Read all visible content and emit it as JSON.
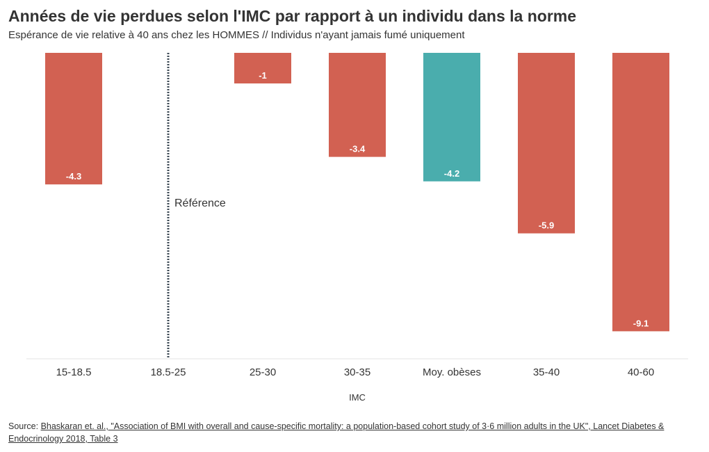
{
  "title": "Années de vie perdues selon l'IMC par rapport à un individu dans la norme",
  "subtitle": "Espérance de vie relative à 40 ans chez les HOMMES // Individus n'ayant jamais fumé uniquement",
  "source": {
    "prefix": "Source: ",
    "link_text": "Bhaskaran et. al., \"Association of BMI with overall and cause-specific mortality: a population-based cohort study of 3·6 million adults in the UK\", Lancet Diabetes & Endocrinology 2018, Table 3"
  },
  "colors": {
    "bar": "#d26152",
    "highlight": "#4aadad",
    "reference_line": "#3d4a55",
    "axis": "#e3e3e3"
  },
  "chart_data": {
    "type": "bar",
    "xlabel": "IMC",
    "ylabel": "",
    "categories": [
      "15-18.5",
      "18.5-25",
      "25-30",
      "30-35",
      "Moy. obèses",
      "35-40",
      "40-60"
    ],
    "values": [
      -4.3,
      null,
      -1,
      -3.4,
      -4.2,
      -5.9,
      -9.1
    ],
    "data_labels": [
      "-4.3",
      "",
      "-1",
      "-3.4",
      "-4.2",
      "-5.9",
      "-9.1"
    ],
    "highlight_category": "Moy. obèses",
    "reference_category": "18.5-25",
    "reference_label": "Référence",
    "ylim": [
      -10,
      0
    ],
    "grid": false,
    "legend": "none"
  }
}
